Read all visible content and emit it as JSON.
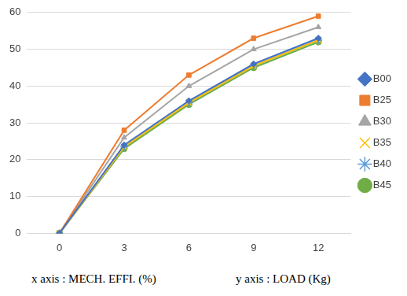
{
  "chart_data": {
    "type": "line",
    "annotations": [
      "x axis : MECH. EFFI. (%)",
      "y axis : LOAD (Kg)"
    ],
    "categories": [
      "0",
      "3",
      "6",
      "9",
      "12"
    ],
    "series": [
      {
        "name": "B00",
        "color": "#4472c4",
        "marker": "diamond",
        "values": [
          0,
          24,
          36,
          46,
          53
        ]
      },
      {
        "name": "B25",
        "color": "#ed7d31",
        "marker": "square",
        "values": [
          0,
          28,
          43,
          53,
          59
        ]
      },
      {
        "name": "B30",
        "color": "#a5a5a5",
        "marker": "triangle",
        "values": [
          0,
          26,
          40,
          50,
          56
        ]
      },
      {
        "name": "B35",
        "color": "#ffc000",
        "marker": "x",
        "values": [
          0,
          23.5,
          35.5,
          45.5,
          52.5
        ]
      },
      {
        "name": "B40",
        "color": "#5b9bd5",
        "marker": "star",
        "values": [
          0,
          23.5,
          35.5,
          45.5,
          52.5
        ]
      },
      {
        "name": "B45",
        "color": "#70ad47",
        "marker": "circle",
        "values": [
          0,
          23,
          35,
          45,
          52
        ]
      }
    ],
    "ylim": [
      0,
      60
    ],
    "yticks": [
      0,
      10,
      20,
      30,
      40,
      50,
      60
    ],
    "grid": true,
    "legend": "right"
  }
}
